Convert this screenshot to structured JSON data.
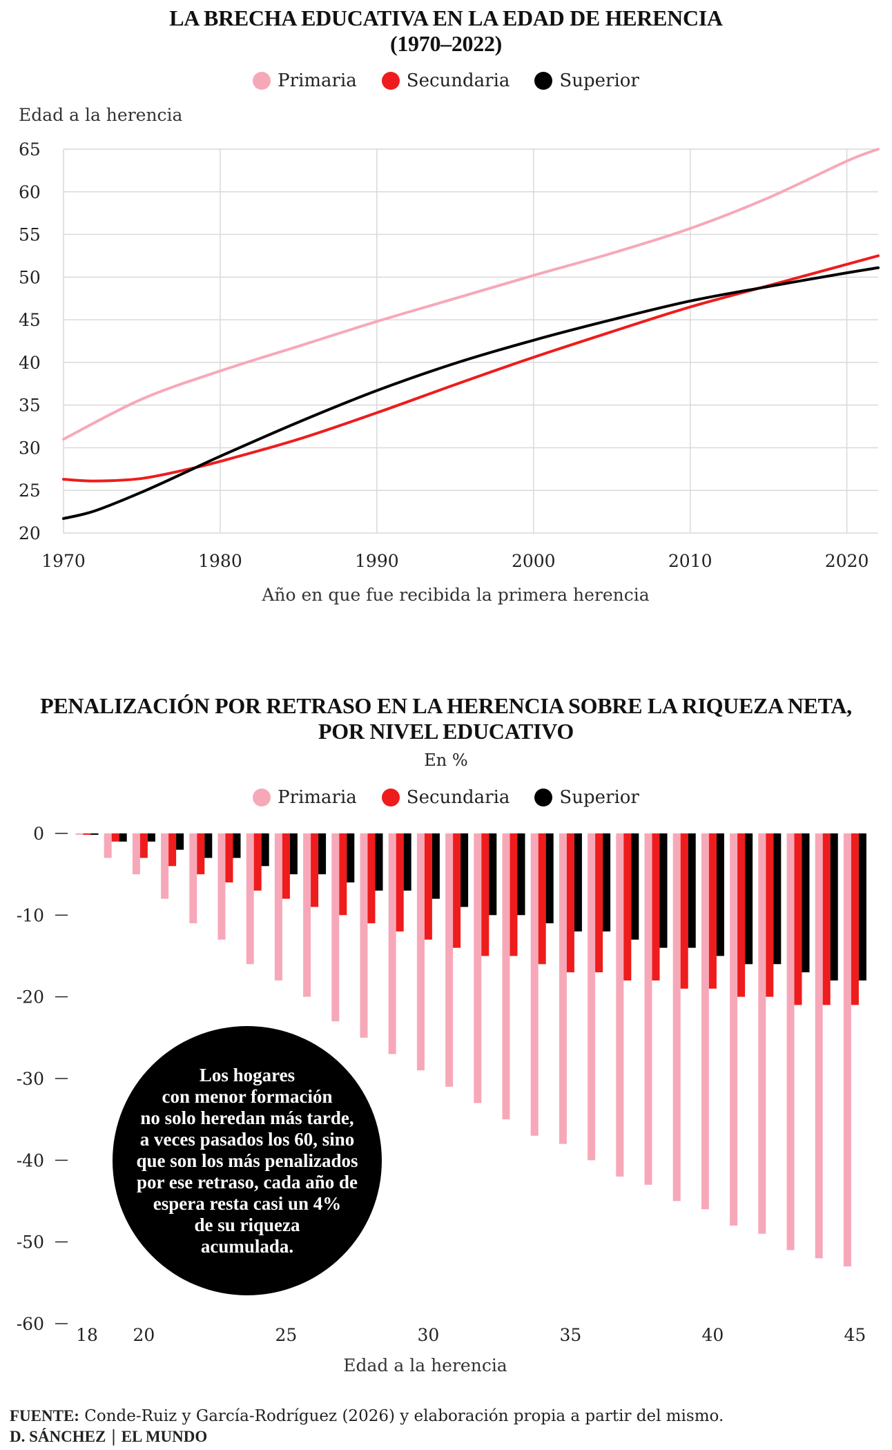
{
  "colors": {
    "primaria": "#f7a8b8",
    "secundaria": "#ee1c1c",
    "superior": "#000000",
    "grid": "#d9d9d9"
  },
  "chart1": {
    "title_lines": [
      "LA BRECHA EDUCATIVA EN LA EDAD DE HERENCIA",
      "(1970–2022)"
    ],
    "legend": [
      "Primaria",
      "Secundaria",
      "Superior"
    ],
    "ylabel": "Edad a la herencia",
    "xlabel": "Año en que fue recibida la primera herencia"
  },
  "chart2": {
    "title_lines": [
      "PENALIZACIÓN POR RETRASO EN LA HERENCIA SOBRE LA RIQUEZA NETA,",
      "POR NIVEL EDUCATIVO"
    ],
    "subtitle": "En %",
    "legend": [
      "Primaria",
      "Secundaria",
      "Superior"
    ],
    "xlabel": "Edad a la herencia",
    "annotation": "Los hogares\ncon menor formación\nno solo heredan más tarde,\na veces pasados los 60, sino\nque son los más penalizados\npor ese retraso, cada año de\nespera resta casi un 4%\nde su riqueza\nacumulada."
  },
  "footer": {
    "source_label": "FUENTE:",
    "source_text": " Conde-Ruiz y García-Rodríguez (2026) y elaboración propia a partir del mismo.",
    "author": "D. SÁNCHEZ",
    "outlet": "EL MUNDO"
  },
  "chart_data": [
    {
      "type": "line",
      "xlim": [
        1970,
        2022
      ],
      "ylim": [
        20,
        65
      ],
      "xticks": [
        1970,
        1980,
        1990,
        2000,
        2010,
        2020
      ],
      "yticks": [
        20,
        25,
        30,
        35,
        40,
        45,
        50,
        55,
        60,
        65
      ],
      "grid": true,
      "legend_position": "top-center",
      "series": [
        {
          "name": "Primaria",
          "color": "#f7a8b8",
          "points": [
            [
              1970,
              31
            ],
            [
              1975,
              35.7
            ],
            [
              1980,
              39
            ],
            [
              1985,
              41.9
            ],
            [
              1990,
              44.8
            ],
            [
              1995,
              47.5
            ],
            [
              2000,
              50.2
            ],
            [
              2005,
              52.8
            ],
            [
              2010,
              55.7
            ],
            [
              2015,
              59.3
            ],
            [
              2020,
              63.6
            ],
            [
              2022,
              65
            ]
          ]
        },
        {
          "name": "Secundaria",
          "color": "#ee1c1c",
          "points": [
            [
              1970,
              26.3
            ],
            [
              1972,
              26.1
            ],
            [
              1975,
              26.4
            ],
            [
              1978,
              27.5
            ],
            [
              1980,
              28.4
            ],
            [
              1985,
              31
            ],
            [
              1990,
              34.1
            ],
            [
              1995,
              37.4
            ],
            [
              2000,
              40.6
            ],
            [
              2005,
              43.6
            ],
            [
              2010,
              46.5
            ],
            [
              2015,
              49
            ],
            [
              2020,
              51.5
            ],
            [
              2022,
              52.5
            ]
          ]
        },
        {
          "name": "Superior",
          "color": "#000000",
          "points": [
            [
              1970,
              21.7
            ],
            [
              1972,
              22.6
            ],
            [
              1975,
              24.8
            ],
            [
              1978,
              27.3
            ],
            [
              1980,
              29
            ],
            [
              1985,
              33
            ],
            [
              1990,
              36.7
            ],
            [
              1995,
              39.9
            ],
            [
              2000,
              42.6
            ],
            [
              2005,
              45
            ],
            [
              2010,
              47.2
            ],
            [
              2015,
              48.9
            ],
            [
              2020,
              50.5
            ],
            [
              2022,
              51.1
            ]
          ]
        }
      ]
    },
    {
      "type": "bar",
      "categories": [
        18,
        19,
        20,
        21,
        22,
        23,
        24,
        25,
        26,
        27,
        28,
        29,
        30,
        31,
        32,
        33,
        34,
        35,
        36,
        37,
        38,
        39,
        40,
        41,
        42,
        43,
        44,
        45
      ],
      "xticks": [
        18,
        20,
        25,
        30,
        35,
        40,
        45
      ],
      "ylim": [
        -60,
        0
      ],
      "yticks": [
        0,
        -10,
        -20,
        -30,
        -40,
        -50,
        -60
      ],
      "legend_position": "top-center",
      "series": [
        {
          "name": "Primaria",
          "color": "#f7a8b8",
          "values": [
            0,
            -3,
            -5,
            -8,
            -11,
            -13,
            -16,
            -18,
            -20,
            -23,
            -25,
            -27,
            -29,
            -31,
            -33,
            -35,
            -37,
            -38,
            -40,
            -42,
            -43,
            -45,
            -46,
            -48,
            -49,
            -51,
            -52,
            -53
          ]
        },
        {
          "name": "Secundaria",
          "color": "#ee1c1c",
          "values": [
            0,
            -1,
            -3,
            -4,
            -5,
            -6,
            -7,
            -8,
            -9,
            -10,
            -11,
            -12,
            -13,
            -14,
            -15,
            -15,
            -16,
            -17,
            -17,
            -18,
            -18,
            -19,
            -19,
            -20,
            -20,
            -21,
            -21,
            -21
          ]
        },
        {
          "name": "Superior",
          "color": "#000000",
          "values": [
            0,
            -1,
            -1,
            -2,
            -3,
            -3,
            -4,
            -5,
            -5,
            -6,
            -7,
            -7,
            -8,
            -9,
            -10,
            -10,
            -11,
            -12,
            -12,
            -13,
            -14,
            -14,
            -15,
            -16,
            -16,
            -17,
            -18,
            -18
          ]
        }
      ]
    }
  ]
}
